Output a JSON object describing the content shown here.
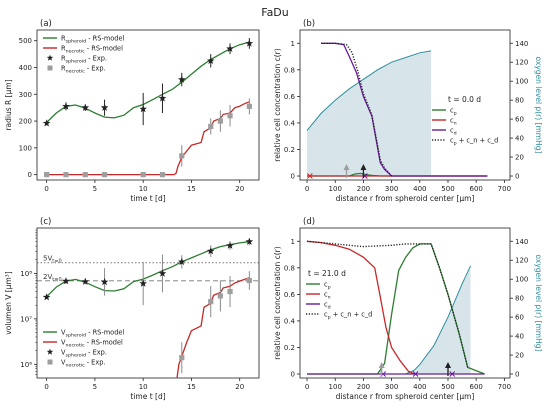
{
  "figure": {
    "title": "FaDu"
  },
  "colors": {
    "green": "#2e7d32",
    "red": "#c62828",
    "purple": "#6a1b9a",
    "teal": "#2f8f9d",
    "fill": "#d7e4ea",
    "marker": "#222222",
    "marker_grey": "#9e9e9e",
    "err_grey": "#8a8a8a"
  },
  "chart_data": [
    {
      "id": "a",
      "panel_label": "(a)",
      "type": "line",
      "xlabel": "time t [d]",
      "ylabel": "radius R [μm]",
      "xlim": [
        -1,
        22
      ],
      "ylim": [
        -20,
        540
      ],
      "xticks": [
        0,
        5,
        10,
        15,
        20
      ],
      "yticks": [
        0,
        100,
        200,
        300,
        400,
        500
      ],
      "legend": [
        "R_spheroid - RS-model",
        "R_necrotic - RS-model",
        "R_spheroid - Exp.",
        "R_necrotic - Exp."
      ],
      "legend_position": "top-left",
      "series": [
        {
          "name": "R_spheroid - RS-model",
          "kind": "model",
          "color": "green",
          "x": [
            0,
            1,
            2,
            3,
            4,
            5,
            6,
            7,
            8,
            9,
            10,
            11,
            12,
            13,
            14,
            15,
            16,
            17,
            18,
            19,
            20,
            21
          ],
          "y": [
            195,
            230,
            255,
            260,
            248,
            230,
            215,
            212,
            222,
            250,
            262,
            280,
            300,
            318,
            345,
            375,
            405,
            430,
            450,
            470,
            485,
            495
          ]
        },
        {
          "name": "R_necrotic - RS-model",
          "kind": "model",
          "color": "red",
          "x": [
            0,
            13.2,
            13.4,
            13.6,
            14,
            15,
            16,
            16.3,
            17,
            17.3,
            18,
            18.3,
            19,
            19.5,
            20,
            20.5,
            21
          ],
          "y": [
            0,
            0,
            5,
            30,
            65,
            110,
            120,
            160,
            175,
            200,
            210,
            225,
            230,
            250,
            255,
            265,
            272
          ]
        },
        {
          "name": "R_spheroid - Exp.",
          "kind": "exp",
          "color": "marker",
          "marker": "star",
          "points": [
            [
              0,
              192,
              8
            ],
            [
              2,
              255,
              15
            ],
            [
              4,
              250,
              12
            ],
            [
              6,
              250,
              30
            ],
            [
              10,
              245,
              60
            ],
            [
              12,
              285,
              55
            ],
            [
              14,
              355,
              25
            ],
            [
              17,
              425,
              25
            ],
            [
              19,
              470,
              20
            ],
            [
              21,
              490,
              20
            ]
          ]
        },
        {
          "name": "R_necrotic - Exp.",
          "kind": "exp",
          "color": "marker_grey",
          "marker": "square",
          "points": [
            [
              0,
              0,
              0
            ],
            [
              2,
              0,
              0
            ],
            [
              4,
              0,
              0
            ],
            [
              6,
              0,
              0
            ],
            [
              10,
              0,
              0
            ],
            [
              12,
              0,
              0
            ],
            [
              14,
              70,
              40
            ],
            [
              17,
              180,
              30
            ],
            [
              18,
              200,
              40
            ],
            [
              19,
              220,
              40
            ],
            [
              21,
              255,
              30
            ]
          ]
        }
      ]
    },
    {
      "id": "b",
      "panel_label": "(b)",
      "type": "line",
      "xlabel": "distance r from spheroid center [μm]",
      "ylabel": "relative cell concentration c(r)",
      "y2label": "oxygen level p(r) [mmHg]",
      "xlim": [
        -25,
        720
      ],
      "ylim": [
        -0.03,
        1.1
      ],
      "y2lim": [
        -4.2,
        154
      ],
      "xticks": [
        0,
        100,
        200,
        300,
        400,
        500,
        600,
        700
      ],
      "yticks": [
        0.0,
        0.2,
        0.4,
        0.6,
        0.8,
        1.0
      ],
      "y2ticks": [
        0,
        20,
        40,
        60,
        80,
        100,
        120,
        140
      ],
      "annotation": "t = 0.0 d",
      "legend": [
        "c_p",
        "c_n",
        "c_d",
        "c_p + c_n + c_d"
      ],
      "legend_position": "center-right",
      "oxygen": {
        "x": [
          0,
          50,
          100,
          150,
          200,
          250,
          300,
          350,
          400,
          440
        ],
        "y": [
          48,
          66,
          80,
          92,
          102,
          112,
          120,
          125,
          130,
          132
        ]
      },
      "series": [
        {
          "name": "c_p",
          "color": "green",
          "x": [
            0,
            150,
            170,
            190,
            210,
            230,
            260,
            300,
            640
          ],
          "y": [
            0,
            0,
            0.015,
            0.02,
            0.01,
            0.005,
            0,
            0,
            0
          ]
        },
        {
          "name": "c_n",
          "color": "red",
          "x": [
            0,
            640
          ],
          "y": [
            0,
            0
          ]
        },
        {
          "name": "c_d",
          "color": "purple",
          "x": [
            50,
            100,
            130,
            150,
            175,
            200,
            230,
            260,
            275,
            300,
            640
          ],
          "y": [
            1.0,
            1.0,
            0.99,
            0.9,
            0.78,
            0.6,
            0.45,
            0.1,
            0.05,
            0,
            0
          ]
        },
        {
          "name": "c_p + c_n + c_d",
          "color": "marker",
          "dotted": true,
          "x": [
            50,
            100,
            140,
            160,
            180,
            200,
            230,
            260,
            275,
            300
          ],
          "y": [
            1.0,
            1.0,
            0.99,
            0.93,
            0.79,
            0.62,
            0.46,
            0.12,
            0.06,
            0
          ]
        }
      ],
      "markers": [
        {
          "symbol": "x",
          "x": 10,
          "y": 0,
          "color": "red"
        },
        {
          "symbol": "x",
          "x": 205,
          "y": 0,
          "color": "purple"
        },
        {
          "symbol": "arrow",
          "x": 140,
          "color": "marker_grey"
        },
        {
          "symbol": "arrow",
          "x": 200,
          "color": "marker"
        }
      ]
    },
    {
      "id": "c",
      "panel_label": "(c)",
      "type": "line",
      "yscale": "log",
      "xlabel": "time t [d]",
      "ylabel": "volumen V [μm³]",
      "xlim": [
        -1,
        22
      ],
      "ylim": [
        500000,
        1000000000
      ],
      "xticks": [
        0,
        5,
        10,
        15,
        20
      ],
      "yticks": [
        1000000,
        10000000,
        100000000
      ],
      "yticklabels": [
        "10⁶",
        "10⁷",
        "10⁸"
      ],
      "legend": [
        "V_spheroid - RS-model",
        "V_necrotic - RS-model",
        "V_spheroid - Exp.",
        "V_necrotic - Exp."
      ],
      "legend_position": "lower-left",
      "reference_lines": [
        {
          "label": "5V_{t=0}",
          "value": 172000000,
          "style": "dotted"
        },
        {
          "label": "2V_{t=0}",
          "value": 69000000,
          "style": "dashed"
        }
      ],
      "series": [
        {
          "name": "V_spheroid - RS-model",
          "kind": "model",
          "color": "green",
          "x": [
            0,
            1,
            2,
            3,
            4,
            5,
            6,
            7,
            8,
            9,
            10,
            11,
            12,
            13,
            14,
            15,
            16,
            17,
            18,
            19,
            20,
            21
          ],
          "y": [
            31000000,
            50000000,
            68000000,
            74000000,
            64000000,
            51000000,
            42000000,
            41000000,
            46000000,
            66000000,
            75000000,
            92000000,
            115000000,
            140000000,
            180000000,
            220000000,
            270000000,
            330000000,
            390000000,
            430000000,
            470000000,
            500000000
          ]
        },
        {
          "name": "V_necrotic - RS-model",
          "kind": "model",
          "color": "red",
          "x": [
            13.5,
            13.7,
            14,
            14.5,
            15,
            16,
            16.3,
            17,
            17.3,
            18,
            18.3,
            19,
            19.5,
            20,
            20.5,
            21
          ],
          "y": [
            500000,
            1000000,
            1500000,
            3000000,
            5500000,
            7000000,
            18000000,
            22000000,
            33000000,
            38000000,
            48000000,
            52000000,
            62000000,
            68000000,
            74000000,
            80000000
          ]
        },
        {
          "name": "V_spheroid - Exp.",
          "kind": "exp",
          "color": "marker",
          "marker": "star",
          "points": [
            [
              0,
              30000000,
              1.05
            ],
            [
              2,
              68000000,
              1.15
            ],
            [
              4,
              66000000,
              1.15
            ],
            [
              6,
              65000000,
              2.0
            ],
            [
              10,
              60000000,
              3.0
            ],
            [
              12,
              100000000,
              2.6
            ],
            [
              14,
              180000000,
              1.4
            ],
            [
              17,
              310000000,
              1.35
            ],
            [
              19,
              410000000,
              1.25
            ],
            [
              21,
              500000000,
              1.2
            ]
          ]
        },
        {
          "name": "V_necrotic - Exp.",
          "kind": "exp",
          "color": "marker_grey",
          "marker": "square",
          "points": [
            [
              14,
              1400000,
              2.2
            ],
            [
              17,
              24000000,
              2.2
            ],
            [
              18,
              32000000,
              2.2
            ],
            [
              19,
              40000000,
              2.2
            ],
            [
              21,
              70000000,
              1.6
            ]
          ]
        }
      ]
    },
    {
      "id": "d",
      "panel_label": "(d)",
      "type": "line",
      "xlabel": "distance r from spheroid center [μm]",
      "ylabel": "relative cell concentration c(r)",
      "y2label": "oxygen level p(r) [mmHg]",
      "xlim": [
        -25,
        720
      ],
      "ylim": [
        -0.03,
        1.1
      ],
      "y2lim": [
        -4.2,
        154
      ],
      "xticks": [
        0,
        100,
        200,
        300,
        400,
        500,
        600,
        700
      ],
      "yticks": [
        0.0,
        0.2,
        0.4,
        0.6,
        0.8,
        1.0
      ],
      "y2ticks": [
        0,
        20,
        40,
        60,
        80,
        100,
        120,
        140
      ],
      "annotation": "t = 21.0 d",
      "legend": [
        "c_p",
        "c_n",
        "c_d",
        "c_p + c_n + c_d"
      ],
      "legend_position": "center-left",
      "oxygen": {
        "x": [
          350,
          380,
          400,
          450,
          500,
          550,
          580
        ],
        "y": [
          0,
          4,
          10,
          30,
          60,
          95,
          114
        ]
      },
      "series": [
        {
          "name": "c_p",
          "color": "green",
          "x": [
            0,
            250,
            275,
            300,
            325,
            350,
            375,
            400,
            440,
            470,
            500,
            540,
            570,
            630
          ],
          "y": [
            0,
            0,
            0.08,
            0.45,
            0.78,
            0.88,
            0.95,
            0.98,
            0.98,
            0.8,
            0.6,
            0.3,
            0.05,
            0
          ]
        },
        {
          "name": "c_n",
          "color": "red",
          "x": [
            0,
            50,
            100,
            150,
            200,
            240,
            260,
            280,
            300,
            330,
            360,
            380
          ],
          "y": [
            1.0,
            0.99,
            0.97,
            0.94,
            0.88,
            0.8,
            0.58,
            0.35,
            0.2,
            0.1,
            0.02,
            0
          ]
        },
        {
          "name": "c_d",
          "color": "purple",
          "x": [
            0,
            630
          ],
          "y": [
            0,
            0
          ]
        },
        {
          "name": "c_p + c_n + c_d",
          "color": "marker",
          "dotted": true,
          "x": [
            0,
            50,
            100,
            150,
            200,
            250,
            300,
            350,
            400,
            440,
            470,
            500,
            540,
            570
          ],
          "y": [
            1.0,
            0.99,
            0.98,
            0.97,
            0.96,
            0.965,
            0.97,
            0.98,
            0.98,
            0.98,
            0.8,
            0.6,
            0.3,
            0.05
          ]
        }
      ],
      "markers": [
        {
          "symbol": "x",
          "x": 270,
          "y": 0,
          "color": "purple"
        },
        {
          "symbol": "x",
          "x": 385,
          "y": 0,
          "color": "purple"
        },
        {
          "symbol": "x",
          "x": 515,
          "y": 0,
          "color": "purple"
        },
        {
          "symbol": "arrow",
          "x": 265,
          "color": "marker_grey"
        },
        {
          "symbol": "arrow",
          "x": 500,
          "color": "marker"
        }
      ]
    }
  ]
}
